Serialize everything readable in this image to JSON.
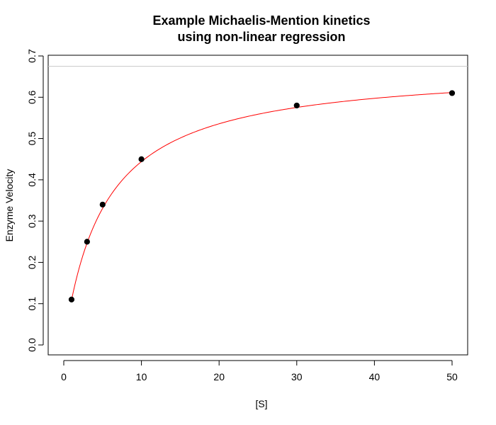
{
  "chart_data": {
    "type": "scatter",
    "title_line1": "Example Michaelis-Mention kinetics",
    "title_line2": "using non-linear regression",
    "xlabel": "[S]",
    "ylabel": "Enzyme Velocity",
    "xlim": [
      0,
      50
    ],
    "ylim": [
      0,
      0.7
    ],
    "x_ticks": [
      0,
      10,
      20,
      30,
      40,
      50
    ],
    "y_ticks": [
      0.0,
      0.1,
      0.2,
      0.3,
      0.4,
      0.5,
      0.6,
      0.7
    ],
    "x_tick_labels": [
      "0",
      "10",
      "20",
      "30",
      "40",
      "50"
    ],
    "y_tick_labels": [
      "0.0",
      "0.1",
      "0.2",
      "0.3",
      "0.4",
      "0.5",
      "0.6",
      "0.7"
    ],
    "grid": false,
    "series": [
      {
        "x": [
          1,
          3,
          5,
          10,
          30,
          50
        ],
        "y": [
          0.11,
          0.25,
          0.34,
          0.45,
          0.58,
          0.61
        ],
        "color": "#000000"
      }
    ],
    "fit_curve": {
      "model": "michaelis-menten",
      "vmax": 0.675,
      "km": 5.2,
      "x_range": [
        1,
        50
      ],
      "color": "#ff0000"
    },
    "reference_line": {
      "y": 0.675,
      "color": "#c8c8c8"
    }
  }
}
